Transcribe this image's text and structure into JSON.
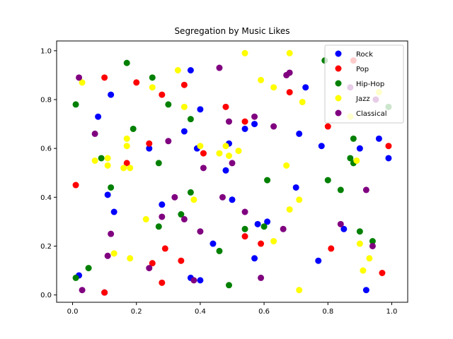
{
  "chart_data": {
    "type": "scatter",
    "title": "Segregation by Music Likes",
    "xlabel": "",
    "ylabel": "",
    "xlim": [
      -0.05,
      1.05
    ],
    "ylim": [
      -0.03,
      1.04
    ],
    "xticks": [
      "0.0",
      "0.2",
      "0.4",
      "0.6",
      "0.8",
      "1.0"
    ],
    "yticks": [
      "0.0",
      "0.2",
      "0.4",
      "0.6",
      "0.8",
      "1.0"
    ],
    "grid": false,
    "legend_position": "top-right",
    "series": [
      {
        "name": "Rock",
        "color": "#0000ff",
        "points": [
          [
            0.02,
            0.08
          ],
          [
            0.08,
            0.73
          ],
          [
            0.1,
            0.01
          ],
          [
            0.12,
            0.82
          ],
          [
            0.11,
            0.41
          ],
          [
            0.13,
            0.34
          ],
          [
            0.24,
            0.6
          ],
          [
            0.28,
            0.37
          ],
          [
            0.35,
            0.67
          ],
          [
            0.37,
            0.92
          ],
          [
            0.37,
            0.07
          ],
          [
            0.39,
            0.6
          ],
          [
            0.4,
            0.76
          ],
          [
            0.4,
            0.06
          ],
          [
            0.44,
            0.21
          ],
          [
            0.48,
            0.51
          ],
          [
            0.49,
            0.62
          ],
          [
            0.5,
            0.39
          ],
          [
            0.54,
            0.68
          ],
          [
            0.57,
            0.7
          ],
          [
            0.57,
            0.15
          ],
          [
            0.58,
            0.29
          ],
          [
            0.61,
            0.3
          ],
          [
            0.7,
            0.44
          ],
          [
            0.71,
            0.66
          ],
          [
            0.73,
            0.85
          ],
          [
            0.77,
            0.14
          ],
          [
            0.78,
            0.61
          ],
          [
            0.85,
            0.27
          ],
          [
            0.9,
            0.6
          ],
          [
            0.92,
            0.02
          ],
          [
            0.96,
            0.64
          ],
          [
            0.99,
            0.56
          ]
        ]
      },
      {
        "name": "Pop",
        "color": "#ff0000",
        "points": [
          [
            0.01,
            0.45
          ],
          [
            0.1,
            0.89
          ],
          [
            0.1,
            0.01
          ],
          [
            0.17,
            0.54
          ],
          [
            0.2,
            0.87
          ],
          [
            0.24,
            0.62
          ],
          [
            0.25,
            0.13
          ],
          [
            0.28,
            0.82
          ],
          [
            0.29,
            0.19
          ],
          [
            0.28,
            0.05
          ],
          [
            0.34,
            0.14
          ],
          [
            0.35,
            0.86
          ],
          [
            0.41,
            0.58
          ],
          [
            0.48,
            0.77
          ],
          [
            0.54,
            0.71
          ],
          [
            0.54,
            0.24
          ],
          [
            0.59,
            0.21
          ],
          [
            0.68,
            0.83
          ],
          [
            0.8,
            0.69
          ],
          [
            0.81,
            0.19
          ],
          [
            0.88,
            0.96
          ],
          [
            0.97,
            0.09
          ],
          [
            0.99,
            0.61
          ]
        ]
      },
      {
        "name": "Hip-Hop",
        "color": "#008000",
        "points": [
          [
            0.01,
            0.78
          ],
          [
            0.01,
            0.07
          ],
          [
            0.05,
            0.11
          ],
          [
            0.09,
            0.56
          ],
          [
            0.12,
            0.44
          ],
          [
            0.17,
            0.95
          ],
          [
            0.19,
            0.68
          ],
          [
            0.25,
            0.89
          ],
          [
            0.27,
            0.54
          ],
          [
            0.27,
            0.28
          ],
          [
            0.3,
            0.78
          ],
          [
            0.34,
            0.33
          ],
          [
            0.37,
            0.72
          ],
          [
            0.37,
            0.42
          ],
          [
            0.46,
            0.18
          ],
          [
            0.49,
            0.04
          ],
          [
            0.54,
            0.27
          ],
          [
            0.6,
            0.28
          ],
          [
            0.61,
            0.47
          ],
          [
            0.79,
            0.96
          ],
          [
            0.8,
            0.47
          ],
          [
            0.84,
            0.43
          ],
          [
            0.88,
            0.64
          ],
          [
            0.87,
            0.56
          ],
          [
            0.88,
            0.54
          ],
          [
            0.9,
            0.26
          ],
          [
            0.94,
            0.22
          ],
          [
            0.99,
            0.77
          ]
        ]
      },
      {
        "name": "Jazz",
        "color": "#ffff00",
        "points": [
          [
            0.03,
            0.87
          ],
          [
            0.07,
            0.55
          ],
          [
            0.11,
            0.56
          ],
          [
            0.11,
            0.53
          ],
          [
            0.13,
            0.17
          ],
          [
            0.16,
            0.52
          ],
          [
            0.17,
            0.64
          ],
          [
            0.17,
            0.61
          ],
          [
            0.18,
            0.52
          ],
          [
            0.18,
            0.15
          ],
          [
            0.23,
            0.31
          ],
          [
            0.25,
            0.85
          ],
          [
            0.33,
            0.92
          ],
          [
            0.35,
            0.77
          ],
          [
            0.38,
            0.39
          ],
          [
            0.4,
            0.61
          ],
          [
            0.46,
            0.58
          ],
          [
            0.48,
            0.61
          ],
          [
            0.49,
            0.57
          ],
          [
            0.52,
            0.59
          ],
          [
            0.54,
            0.99
          ],
          [
            0.59,
            0.88
          ],
          [
            0.63,
            0.85
          ],
          [
            0.63,
            0.22
          ],
          [
            0.67,
            0.53
          ],
          [
            0.68,
            0.99
          ],
          [
            0.68,
            0.35
          ],
          [
            0.71,
            0.39
          ],
          [
            0.71,
            0.02
          ],
          [
            0.72,
            0.79
          ],
          [
            0.87,
            0.73
          ],
          [
            0.89,
            0.55
          ],
          [
            0.9,
            0.21
          ],
          [
            0.91,
            0.1
          ],
          [
            0.93,
            0.15
          ],
          [
            0.96,
            0.83
          ]
        ]
      },
      {
        "name": "Classical",
        "color": "#800080",
        "points": [
          [
            0.02,
            0.89
          ],
          [
            0.03,
            0.02
          ],
          [
            0.07,
            0.66
          ],
          [
            0.11,
            0.16
          ],
          [
            0.12,
            0.25
          ],
          [
            0.24,
            0.11
          ],
          [
            0.28,
            0.32
          ],
          [
            0.3,
            0.63
          ],
          [
            0.32,
            0.4
          ],
          [
            0.35,
            0.31
          ],
          [
            0.38,
            0.06
          ],
          [
            0.4,
            0.26
          ],
          [
            0.41,
            0.52
          ],
          [
            0.46,
            0.93
          ],
          [
            0.47,
            0.4
          ],
          [
            0.49,
            0.71
          ],
          [
            0.5,
            0.54
          ],
          [
            0.54,
            0.34
          ],
          [
            0.57,
            0.73
          ],
          [
            0.59,
            0.07
          ],
          [
            0.63,
            0.69
          ],
          [
            0.66,
            0.27
          ],
          [
            0.67,
            0.9
          ],
          [
            0.68,
            0.91
          ],
          [
            0.84,
            0.29
          ],
          [
            0.87,
            0.85
          ],
          [
            0.92,
            0.43
          ],
          [
            0.94,
            0.2
          ],
          [
            0.95,
            0.8
          ]
        ]
      }
    ]
  }
}
